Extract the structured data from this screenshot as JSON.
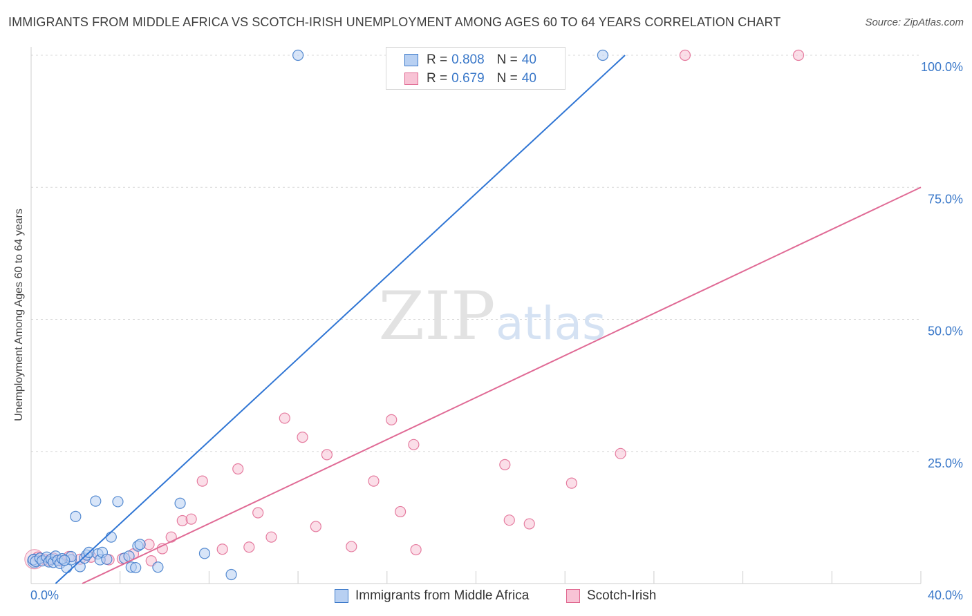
{
  "header": {
    "title": "IMMIGRANTS FROM MIDDLE AFRICA VS SCOTCH-IRISH UNEMPLOYMENT AMONG AGES 60 TO 64 YEARS CORRELATION CHART",
    "source": "Source: ZipAtlas.com"
  },
  "watermark": {
    "zip": "ZIP",
    "atlas": "atlas"
  },
  "colors": {
    "blue": "#3a78c9",
    "blue_fill": "#b8d0f2",
    "blue_line": "#2f75d4",
    "pink": "#e0668f",
    "pink_fill": "#f8c3d5",
    "pink_line": "#e06a95",
    "grid": "#d9d9d9"
  },
  "legend_top": {
    "rows": [
      {
        "r_label": "R =",
        "r_value": "0.808",
        "n_label": "N =",
        "n_value": "40"
      },
      {
        "r_label": "R =",
        "r_value": "0.679",
        "n_label": "N =",
        "n_value": "40"
      }
    ]
  },
  "legend_bottom": {
    "items": [
      "Immigrants from Middle Africa",
      "Scotch-Irish"
    ]
  },
  "chart_data": {
    "type": "scatter",
    "title": "IMMIGRANTS FROM MIDDLE AFRICA VS SCOTCH-IRISH UNEMPLOYMENT AMONG AGES 60 TO 64 YEARS CORRELATION CHART",
    "xlabel": "",
    "ylabel": "Unemployment Among Ages 60 to 64 years",
    "xlim": [
      0,
      40
    ],
    "ylim": [
      0,
      100
    ],
    "x_tick_labels": [
      "0.0%",
      "40.0%"
    ],
    "y_ticks": [
      25,
      50,
      75,
      100
    ],
    "y_tick_labels": [
      "25.0%",
      "50.0%",
      "75.0%",
      "100.0%"
    ],
    "grid": true,
    "legend_position": "top-center",
    "series": [
      {
        "name": "Immigrants from Middle Africa",
        "r": 0.808,
        "n": 40,
        "trend": {
          "x": [
            1.1,
            26.7
          ],
          "y": [
            0,
            100
          ]
        },
        "points": [
          [
            0.1,
            4.5
          ],
          [
            0.2,
            4.2
          ],
          [
            0.4,
            4.8
          ],
          [
            0.5,
            4.3
          ],
          [
            0.7,
            5.0
          ],
          [
            0.8,
            4.1
          ],
          [
            0.9,
            4.6
          ],
          [
            1.0,
            4.0
          ],
          [
            1.1,
            5.2
          ],
          [
            1.2,
            4.4
          ],
          [
            1.3,
            3.8
          ],
          [
            1.4,
            4.7
          ],
          [
            1.6,
            3.0
          ],
          [
            1.8,
            4.5
          ],
          [
            1.8,
            5.1
          ],
          [
            2.0,
            12.7
          ],
          [
            2.2,
            3.2
          ],
          [
            2.4,
            4.8
          ],
          [
            2.5,
            5.4
          ],
          [
            2.6,
            5.9
          ],
          [
            2.9,
            15.6
          ],
          [
            3.0,
            5.6
          ],
          [
            3.1,
            4.5
          ],
          [
            3.2,
            5.9
          ],
          [
            3.4,
            4.6
          ],
          [
            3.6,
            8.8
          ],
          [
            3.9,
            15.5
          ],
          [
            4.2,
            4.8
          ],
          [
            4.4,
            5.2
          ],
          [
            4.5,
            3.1
          ],
          [
            4.7,
            3.0
          ],
          [
            4.8,
            7.1
          ],
          [
            4.9,
            7.4
          ],
          [
            5.7,
            3.1
          ],
          [
            6.7,
            15.2
          ],
          [
            7.8,
            5.7
          ],
          [
            9.0,
            1.7
          ],
          [
            12.0,
            100.0
          ],
          [
            25.7,
            100.0
          ],
          [
            1.5,
            4.4
          ]
        ]
      },
      {
        "name": "Scotch-Irish",
        "r": 0.679,
        "n": 40,
        "trend": {
          "x": [
            2.3,
            40.0
          ],
          "y": [
            0,
            75
          ]
        },
        "points": [
          [
            0.3,
            5.0
          ],
          [
            0.6,
            4.6
          ],
          [
            0.8,
            4.4
          ],
          [
            1.0,
            4.8
          ],
          [
            1.3,
            4.3
          ],
          [
            1.7,
            5.1
          ],
          [
            2.2,
            4.6
          ],
          [
            2.7,
            5.0
          ],
          [
            3.5,
            4.5
          ],
          [
            4.1,
            4.7
          ],
          [
            4.6,
            5.6
          ],
          [
            5.3,
            7.4
          ],
          [
            5.4,
            4.3
          ],
          [
            5.9,
            6.6
          ],
          [
            6.3,
            8.8
          ],
          [
            6.8,
            11.9
          ],
          [
            7.2,
            12.2
          ],
          [
            7.7,
            19.4
          ],
          [
            8.6,
            6.5
          ],
          [
            9.3,
            21.7
          ],
          [
            9.8,
            6.9
          ],
          [
            10.2,
            13.4
          ],
          [
            10.8,
            8.8
          ],
          [
            11.4,
            31.3
          ],
          [
            12.2,
            27.7
          ],
          [
            12.8,
            10.8
          ],
          [
            13.3,
            24.4
          ],
          [
            14.4,
            7.0
          ],
          [
            15.4,
            19.4
          ],
          [
            16.2,
            31.0
          ],
          [
            16.6,
            13.6
          ],
          [
            17.2,
            26.3
          ],
          [
            17.3,
            6.4
          ],
          [
            21.3,
            22.5
          ],
          [
            21.5,
            12.0
          ],
          [
            22.4,
            11.3
          ],
          [
            24.3,
            19.0
          ],
          [
            26.5,
            24.6
          ],
          [
            29.4,
            100.0
          ],
          [
            34.5,
            100.0
          ]
        ]
      }
    ]
  }
}
